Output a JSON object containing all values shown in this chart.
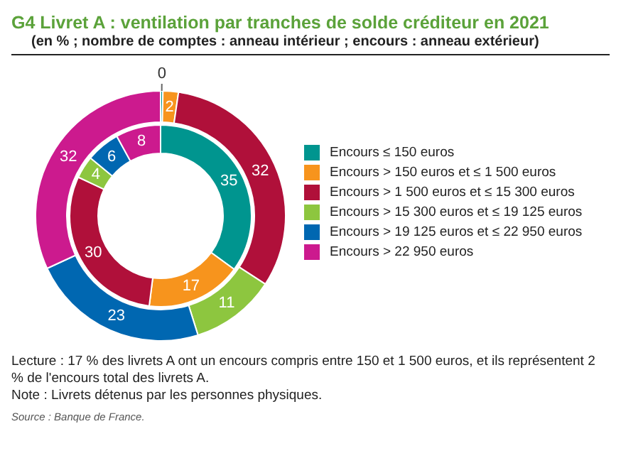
{
  "chart_data": {
    "type": "donut",
    "title": "G4 Livret A : ventilation par tranches de solde créditeur en 2021",
    "subtitle": "(en % ; nombre de comptes : anneau intérieur ; encours : anneau extérieur)",
    "categories": [
      "Encours ≤ 150 euros",
      "Encours > 150 euros et ≤ 1 500 euros",
      "Encours > 1 500 euros et ≤ 15 300 euros",
      "Encours > 15 300 euros et ≤ 19 125 euros",
      "Encours > 19 125 euros et ≤ 22 950 euros",
      "Encours > 22 950 euros"
    ],
    "colors": [
      "#00958f",
      "#f7941d",
      "#b0103a",
      "#8dc63f",
      "#0067b1",
      "#cc1a8e"
    ],
    "series": [
      {
        "values": [
          35,
          17,
          30,
          4,
          6,
          8
        ],
        "value_labels": [
          "35",
          "17",
          "30",
          "4",
          "6",
          "8"
        ]
      },
      {
        "values": [
          0.3,
          2,
          32,
          11,
          23,
          32
        ],
        "value_labels": [
          "0",
          "2",
          "32",
          "11",
          "23",
          "32"
        ]
      }
    ],
    "legend": "right",
    "annotations": [
      "Lecture : 17 % des livrets A ont un encours compris entre 150 et 1 500 euros, et ils représentent 2 % de l'encours total des livrets A.",
      "Note : Livrets détenus par les personnes physiques.",
      "Source : Banque de France."
    ]
  }
}
